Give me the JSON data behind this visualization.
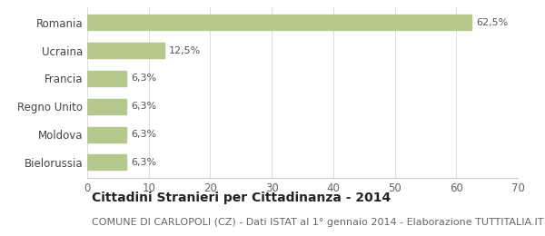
{
  "categories": [
    "Bielorussia",
    "Moldova",
    "Regno Unito",
    "Francia",
    "Ucraina",
    "Romania"
  ],
  "values": [
    6.3,
    6.3,
    6.3,
    6.3,
    12.5,
    62.5
  ],
  "labels": [
    "6,3%",
    "6,3%",
    "6,3%",
    "6,3%",
    "12,5%",
    "62,5%"
  ],
  "bar_color": "#b5c98e",
  "background_color": "#ffffff",
  "xlim": [
    0,
    70
  ],
  "xticks": [
    0,
    10,
    20,
    30,
    40,
    50,
    60,
    70
  ],
  "title": "Cittadini Stranieri per Cittadinanza - 2014",
  "subtitle": "COMUNE DI CARLOPOLI (CZ) - Dati ISTAT al 1° gennaio 2014 - Elaborazione TUTTITALIA.IT",
  "title_fontsize": 10,
  "subtitle_fontsize": 8,
  "label_fontsize": 8,
  "ytick_fontsize": 8.5,
  "xtick_fontsize": 8.5
}
